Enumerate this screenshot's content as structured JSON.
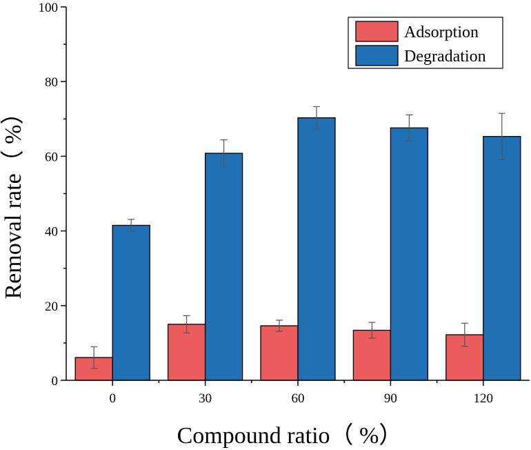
{
  "chart_data": {
    "type": "bar",
    "title": "",
    "xlabel": "Compound ratio（ %）",
    "ylabel": "Removal rate（ %）",
    "categories": [
      "0",
      "30",
      "60",
      "90",
      "120"
    ],
    "ylim": [
      0,
      100
    ],
    "yticks": [
      0,
      20,
      40,
      60,
      80,
      100
    ],
    "series": [
      {
        "name": "Adsorption",
        "color": "#ed5c5c",
        "values": [
          6.1,
          15.0,
          14.6,
          13.4,
          12.2
        ],
        "errors": [
          2.9,
          2.3,
          1.5,
          2.1,
          3.1
        ]
      },
      {
        "name": "Degradation",
        "color": "#1f70b5",
        "values": [
          41.5,
          60.8,
          70.3,
          67.6,
          65.3
        ],
        "errors": [
          1.6,
          3.6,
          3.0,
          3.5,
          6.2
        ]
      }
    ],
    "legend": "top-right"
  }
}
